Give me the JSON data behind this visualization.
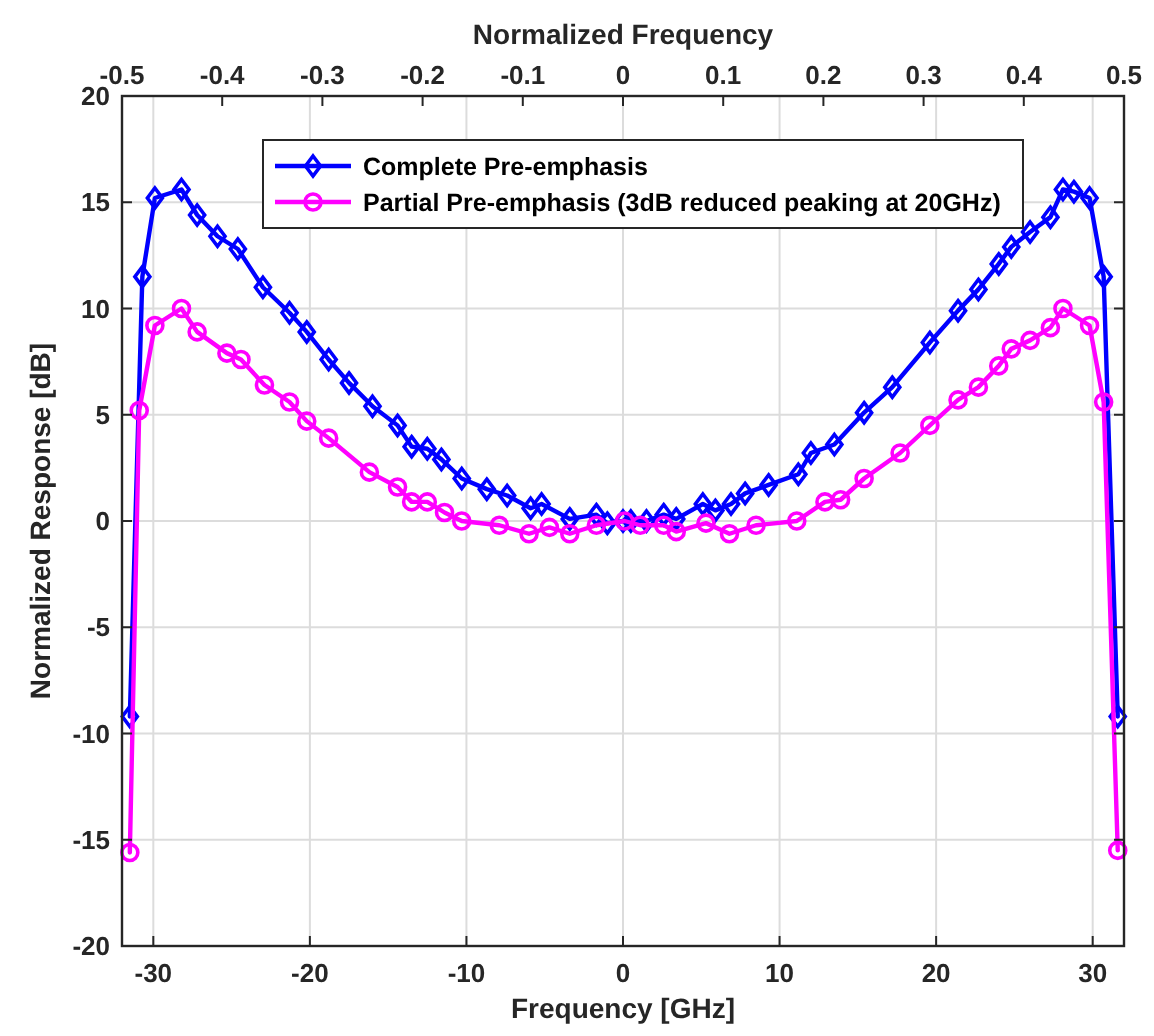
{
  "chart_data": {
    "type": "line",
    "xlabel": "Frequency [GHz]",
    "ylabel": "Normalized Response [dB]",
    "x2label": "Normalized Frequency",
    "xlim": [
      -32,
      32
    ],
    "xticks": [
      -30,
      -20,
      -10,
      0,
      10,
      20,
      30
    ],
    "ylim": [
      -20,
      20
    ],
    "yticks": [
      -20,
      -15,
      -10,
      -5,
      0,
      5,
      10,
      15,
      20
    ],
    "x2lim": [
      -0.5,
      0.5
    ],
    "x2ticks": [
      -0.5,
      -0.4,
      -0.3,
      -0.2,
      -0.1,
      0,
      0.1,
      0.2,
      0.3,
      0.4,
      0.5
    ],
    "grid": true,
    "legend": "top",
    "line_style": "solid",
    "series": [
      {
        "name": "Complete Pre-emphasis",
        "color": "#0000ff",
        "marker": "diamond",
        "x": [
          -31.5,
          -30.7,
          -29.9,
          -28.2,
          -27.2,
          -25.9,
          -24.6,
          -23.0,
          -21.3,
          -20.2,
          -18.8,
          -17.5,
          -16.0,
          -14.4,
          -13.5,
          -12.5,
          -11.6,
          -10.3,
          -8.7,
          -7.4,
          -5.9,
          -5.2,
          -3.4,
          -1.7,
          -1.0,
          0.0,
          0.5,
          1.5,
          2.6,
          3.4,
          5.1,
          5.9,
          6.9,
          7.8,
          9.3,
          11.2,
          12.0,
          13.5,
          15.4,
          17.2,
          19.6,
          21.4,
          22.7,
          24.0,
          24.8,
          26.0,
          27.3,
          28.1,
          28.8,
          29.8,
          30.7,
          31.6
        ],
        "values": [
          -9.2,
          11.5,
          15.2,
          15.6,
          14.4,
          13.4,
          12.8,
          11.0,
          9.8,
          8.9,
          7.6,
          6.5,
          5.4,
          4.5,
          3.5,
          3.4,
          2.9,
          2.0,
          1.5,
          1.2,
          0.6,
          0.8,
          0.1,
          0.3,
          -0.1,
          0.0,
          0.0,
          0.0,
          0.3,
          0.1,
          0.8,
          0.5,
          0.8,
          1.3,
          1.7,
          2.2,
          3.2,
          3.6,
          5.1,
          6.3,
          8.4,
          9.9,
          10.9,
          12.1,
          12.9,
          13.6,
          14.3,
          15.6,
          15.5,
          15.2,
          11.5,
          -9.2
        ]
      },
      {
        "name": "Partial Pre-emphasis (3dB reduced peaking at 20GHz)",
        "color": "#ff00ff",
        "marker": "circle",
        "x": [
          -31.5,
          -30.9,
          -29.9,
          -28.2,
          -27.2,
          -25.3,
          -24.4,
          -22.9,
          -21.3,
          -20.2,
          -18.8,
          -16.2,
          -14.4,
          -13.5,
          -12.5,
          -11.4,
          -10.3,
          -7.9,
          -6.0,
          -4.7,
          -3.4,
          -1.7,
          0.1,
          1.1,
          2.6,
          3.4,
          5.3,
          6.8,
          8.5,
          11.1,
          12.9,
          13.9,
          15.4,
          17.7,
          19.6,
          21.4,
          22.7,
          24.0,
          24.8,
          26.0,
          27.3,
          28.1,
          29.8,
          30.7,
          31.6
        ],
        "values": [
          -15.6,
          5.2,
          9.2,
          10.0,
          8.9,
          7.9,
          7.6,
          6.4,
          5.6,
          4.7,
          3.9,
          2.3,
          1.6,
          0.9,
          0.9,
          0.4,
          0.0,
          -0.2,
          -0.6,
          -0.3,
          -0.6,
          -0.2,
          0.0,
          -0.2,
          -0.2,
          -0.5,
          -0.1,
          -0.6,
          -0.2,
          0.0,
          0.9,
          1.0,
          2.0,
          3.2,
          4.5,
          5.7,
          6.3,
          7.3,
          8.1,
          8.5,
          9.1,
          10.0,
          9.2,
          5.6,
          -15.5
        ]
      }
    ]
  }
}
